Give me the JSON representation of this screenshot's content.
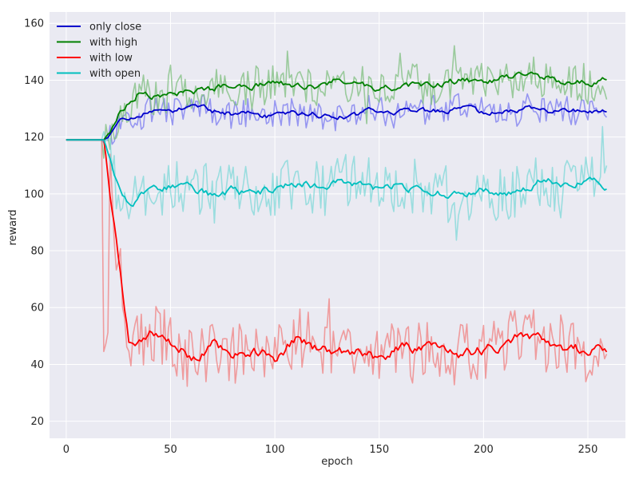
{
  "chart_data": {
    "type": "line",
    "title": "",
    "xlabel": "epoch",
    "ylabel": "reward",
    "xlim": [
      -8,
      268
    ],
    "ylim": [
      14,
      164
    ],
    "x_ticks": [
      0,
      50,
      100,
      150,
      200,
      250
    ],
    "y_ticks": [
      20,
      40,
      60,
      80,
      100,
      120,
      140,
      160
    ],
    "grid": true,
    "legend_position": "top-left",
    "background": "#eaeaf2",
    "series": [
      {
        "name": "only close",
        "color": "#0000cc",
        "raw_color": "#7a7af0",
        "start": 119,
        "plateau": 129,
        "split_epoch": 18,
        "ramp_epochs": 8,
        "smooth_amp": 1.5,
        "raw_amp": 5,
        "seed": 11,
        "keypoints": [
          [
            18,
            119
          ],
          [
            22,
            121
          ],
          [
            26,
            125
          ],
          [
            30,
            127
          ],
          [
            35,
            128
          ],
          [
            40,
            129
          ],
          [
            50,
            129
          ],
          [
            60,
            131
          ],
          [
            70,
            129
          ],
          [
            80,
            128
          ],
          [
            90,
            128
          ],
          [
            100,
            127
          ],
          [
            110,
            128
          ],
          [
            120,
            128
          ],
          [
            130,
            127
          ],
          [
            140,
            128
          ],
          [
            150,
            130
          ],
          [
            160,
            129
          ],
          [
            170,
            129
          ],
          [
            180,
            129
          ],
          [
            190,
            130
          ],
          [
            200,
            128
          ],
          [
            210,
            129
          ],
          [
            220,
            130
          ],
          [
            230,
            129
          ],
          [
            240,
            129
          ],
          [
            250,
            129
          ],
          [
            259,
            129
          ]
        ]
      },
      {
        "name": "with high",
        "color": "#008000",
        "raw_color": "#7fbf7f",
        "start": 119,
        "plateau": 139,
        "split_epoch": 18,
        "ramp_epochs": 14,
        "smooth_amp": 1.8,
        "raw_amp": 7,
        "seed": 23,
        "keypoints": [
          [
            18,
            119
          ],
          [
            22,
            123
          ],
          [
            26,
            129
          ],
          [
            30,
            132
          ],
          [
            35,
            136
          ],
          [
            40,
            134
          ],
          [
            50,
            135
          ],
          [
            60,
            136
          ],
          [
            70,
            137
          ],
          [
            80,
            139
          ],
          [
            90,
            138
          ],
          [
            100,
            140
          ],
          [
            110,
            138
          ],
          [
            120,
            138
          ],
          [
            130,
            140
          ],
          [
            140,
            138
          ],
          [
            150,
            137
          ],
          [
            160,
            138
          ],
          [
            170,
            138
          ],
          [
            180,
            139
          ],
          [
            190,
            140
          ],
          [
            200,
            139
          ],
          [
            210,
            141
          ],
          [
            220,
            142
          ],
          [
            230,
            141
          ],
          [
            240,
            139
          ],
          [
            250,
            139
          ],
          [
            259,
            140
          ]
        ]
      },
      {
        "name": "with low",
        "color": "#ff0000",
        "raw_color": "#f08080",
        "start": 119,
        "plateau": 46,
        "split_epoch": 18,
        "ramp_epochs": 10,
        "smooth_amp": 3,
        "raw_amp": 11,
        "seed": 37,
        "keypoints": [
          [
            18,
            119
          ],
          [
            20,
            108
          ],
          [
            22,
            95
          ],
          [
            24,
            85
          ],
          [
            26,
            72
          ],
          [
            28,
            58
          ],
          [
            30,
            47
          ],
          [
            35,
            47
          ],
          [
            40,
            52
          ],
          [
            50,
            46
          ],
          [
            60,
            43
          ],
          [
            70,
            47
          ],
          [
            80,
            42
          ],
          [
            90,
            45
          ],
          [
            100,
            42
          ],
          [
            110,
            49
          ],
          [
            120,
            45
          ],
          [
            130,
            43
          ],
          [
            140,
            44
          ],
          [
            150,
            42
          ],
          [
            160,
            47
          ],
          [
            170,
            45
          ],
          [
            180,
            48
          ],
          [
            190,
            44
          ],
          [
            200,
            45
          ],
          [
            210,
            47
          ],
          [
            220,
            50
          ],
          [
            230,
            48
          ],
          [
            240,
            43
          ],
          [
            250,
            46
          ],
          [
            259,
            45
          ]
        ]
      },
      {
        "name": "with open",
        "color": "#00bfbf",
        "raw_color": "#7fd8d8",
        "start": 119,
        "plateau": 102,
        "split_epoch": 18,
        "ramp_epochs": 10,
        "smooth_amp": 2.2,
        "raw_amp": 10,
        "seed": 53,
        "keypoints": [
          [
            18,
            119
          ],
          [
            21,
            113
          ],
          [
            24,
            106
          ],
          [
            28,
            100
          ],
          [
            32,
            96
          ],
          [
            40,
            101
          ],
          [
            50,
            103
          ],
          [
            60,
            102
          ],
          [
            70,
            99
          ],
          [
            80,
            101
          ],
          [
            90,
            100
          ],
          [
            100,
            102
          ],
          [
            110,
            104
          ],
          [
            120,
            103
          ],
          [
            130,
            105
          ],
          [
            140,
            103
          ],
          [
            150,
            101
          ],
          [
            160,
            103
          ],
          [
            170,
            102
          ],
          [
            180,
            100
          ],
          [
            190,
            101
          ],
          [
            200,
            101
          ],
          [
            210,
            100
          ],
          [
            220,
            101
          ],
          [
            230,
            105
          ],
          [
            240,
            102
          ],
          [
            250,
            106
          ],
          [
            259,
            103
          ]
        ]
      }
    ]
  }
}
